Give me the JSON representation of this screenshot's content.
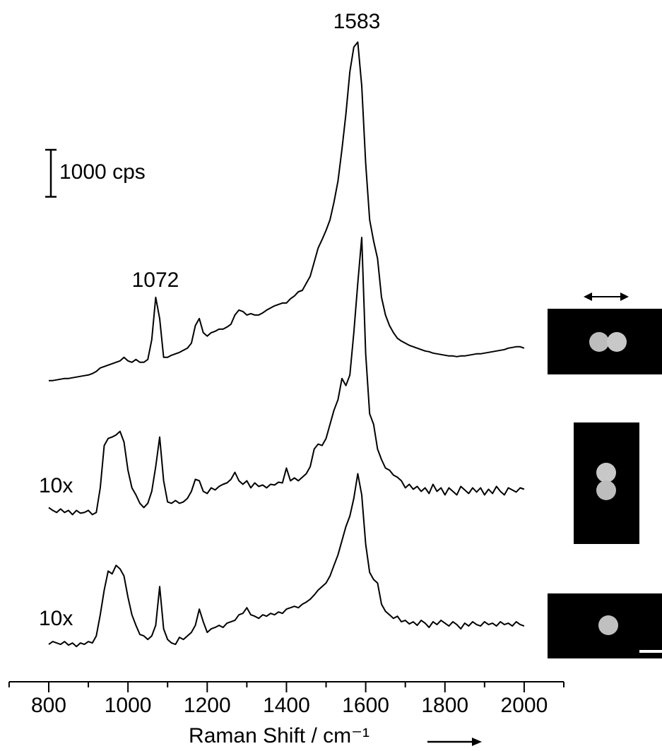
{
  "chart_data": {
    "type": "line",
    "x": [
      800,
      810,
      820,
      830,
      840,
      850,
      860,
      870,
      880,
      890,
      900,
      910,
      920,
      930,
      940,
      950,
      960,
      970,
      980,
      990,
      1000,
      1010,
      1020,
      1030,
      1040,
      1050,
      1060,
      1070,
      1080,
      1090,
      1100,
      1110,
      1120,
      1130,
      1140,
      1150,
      1160,
      1170,
      1180,
      1190,
      1200,
      1210,
      1220,
      1230,
      1240,
      1250,
      1260,
      1270,
      1280,
      1290,
      1300,
      1310,
      1320,
      1330,
      1340,
      1350,
      1360,
      1370,
      1380,
      1390,
      1400,
      1410,
      1420,
      1430,
      1440,
      1450,
      1460,
      1470,
      1480,
      1490,
      1500,
      1510,
      1520,
      1530,
      1540,
      1550,
      1560,
      1570,
      1580,
      1590,
      1600,
      1610,
      1620,
      1630,
      1640,
      1650,
      1660,
      1670,
      1680,
      1690,
      1700,
      1710,
      1720,
      1730,
      1740,
      1750,
      1760,
      1770,
      1780,
      1790,
      1800,
      1810,
      1820,
      1830,
      1840,
      1850,
      1860,
      1870,
      1880,
      1890,
      1900,
      1910,
      1920,
      1930,
      1940,
      1950,
      1960,
      1970,
      1980,
      1990,
      2000
    ],
    "series": [
      {
        "color": "#000000",
        "values": [
          6405,
          6405,
          6420,
          6435,
          6450,
          6450,
          6465,
          6480,
          6495,
          6510,
          6525,
          6555,
          6600,
          6675,
          6705,
          6735,
          6765,
          6795,
          6825,
          6900,
          6825,
          6795,
          6855,
          6795,
          6795,
          6855,
          7275,
          8175,
          7725,
          6900,
          6900,
          6945,
          6975,
          7005,
          7050,
          7095,
          7200,
          7575,
          7725,
          7425,
          7350,
          7425,
          7455,
          7500,
          7500,
          7545,
          7605,
          7800,
          7905,
          7875,
          7800,
          7830,
          7800,
          7800,
          7845,
          7905,
          7950,
          7995,
          8025,
          8055,
          8055,
          8145,
          8205,
          8295,
          8325,
          8475,
          8625,
          8925,
          9225,
          9405,
          9600,
          9825,
          10200,
          10650,
          11325,
          12075,
          12975,
          13500,
          13605,
          12675,
          11025,
          9825,
          9375,
          9000,
          8175,
          7800,
          7575,
          7425,
          7305,
          7245,
          7200,
          7155,
          7125,
          7095,
          7065,
          7035,
          7020,
          6990,
          6975,
          6960,
          6945,
          6930,
          6930,
          6915,
          6930,
          6930,
          6945,
          6960,
          6975,
          6975,
          6990,
          7005,
          7020,
          7035,
          7050,
          7065,
          7095,
          7110,
          7125,
          7125,
          7095
        ]
      },
      {
        "color": "#000000",
        "values": [
          3705,
          3645,
          3600,
          3675,
          3600,
          3645,
          3555,
          3645,
          3585,
          3600,
          3645,
          3555,
          3600,
          4125,
          5025,
          5175,
          5205,
          5250,
          5325,
          5100,
          4500,
          4125,
          3975,
          3795,
          3705,
          3795,
          4050,
          4575,
          5205,
          4275,
          3825,
          3795,
          3855,
          3795,
          3825,
          3900,
          4050,
          4305,
          4275,
          4050,
          4005,
          4125,
          4080,
          4155,
          4200,
          4230,
          4305,
          4455,
          4275,
          4200,
          4275,
          4125,
          4230,
          4155,
          4185,
          4125,
          4200,
          4185,
          4245,
          4230,
          4545,
          4275,
          4335,
          4275,
          4350,
          4425,
          4575,
          4950,
          5055,
          5025,
          5175,
          5475,
          5775,
          6000,
          6450,
          6300,
          6525,
          7425,
          8475,
          9450,
          6975,
          5700,
          5475,
          4950,
          4725,
          4545,
          4500,
          4395,
          4350,
          4275,
          4125,
          4200,
          4095,
          4155,
          4050,
          4125,
          4005,
          4200,
          4050,
          4125,
          3975,
          4125,
          4050,
          3975,
          4155,
          4080,
          4005,
          4125,
          4035,
          4125,
          3975,
          4095,
          4005,
          4155,
          4050,
          3975,
          4125,
          4080,
          4035,
          4125,
          4095
        ]
      },
      {
        "color": "#000000",
        "values": [
          795,
          855,
          825,
          795,
          855,
          780,
          825,
          750,
          825,
          795,
          855,
          825,
          975,
          1425,
          1950,
          2355,
          2295,
          2475,
          2400,
          2250,
          1800,
          1425,
          1200,
          1005,
          975,
          900,
          975,
          1200,
          2025,
          1125,
          900,
          825,
          795,
          945,
          900,
          975,
          1050,
          1200,
          1545,
          1275,
          1050,
          1125,
          1155,
          1200,
          1155,
          1245,
          1275,
          1305,
          1425,
          1455,
          1575,
          1425,
          1395,
          1350,
          1425,
          1395,
          1455,
          1425,
          1485,
          1455,
          1545,
          1575,
          1605,
          1575,
          1650,
          1695,
          1755,
          1845,
          1950,
          2025,
          2100,
          2250,
          2475,
          2700,
          3000,
          3300,
          3525,
          3900,
          4425,
          3975,
          2925,
          2325,
          2175,
          2100,
          1650,
          1500,
          1425,
          1350,
          1395,
          1275,
          1305,
          1230,
          1275,
          1200,
          1305,
          1245,
          1155,
          1275,
          1215,
          1305,
          1245,
          1185,
          1275,
          1215,
          1125,
          1245,
          1185,
          1275,
          1215,
          1185,
          1275,
          1215,
          1245,
          1185,
          1275,
          1215,
          1245,
          1185,
          1275,
          1215,
          1185
        ]
      }
    ],
    "xlim": [
      700,
      2100
    ],
    "xticks": [
      800,
      1000,
      1200,
      1400,
      1600,
      1800,
      2000
    ],
    "xminorticks": [
      700,
      900,
      1100,
      1300,
      1500,
      1700,
      1900,
      2100
    ],
    "ylim": [
      0,
      14500
    ],
    "x_label": "Raman Shift / cm⁻¹",
    "scale_bar": {
      "value": 1000,
      "label": "1000 cps"
    },
    "annotations": [
      "1583",
      "1072",
      "10x",
      "10x"
    ]
  }
}
